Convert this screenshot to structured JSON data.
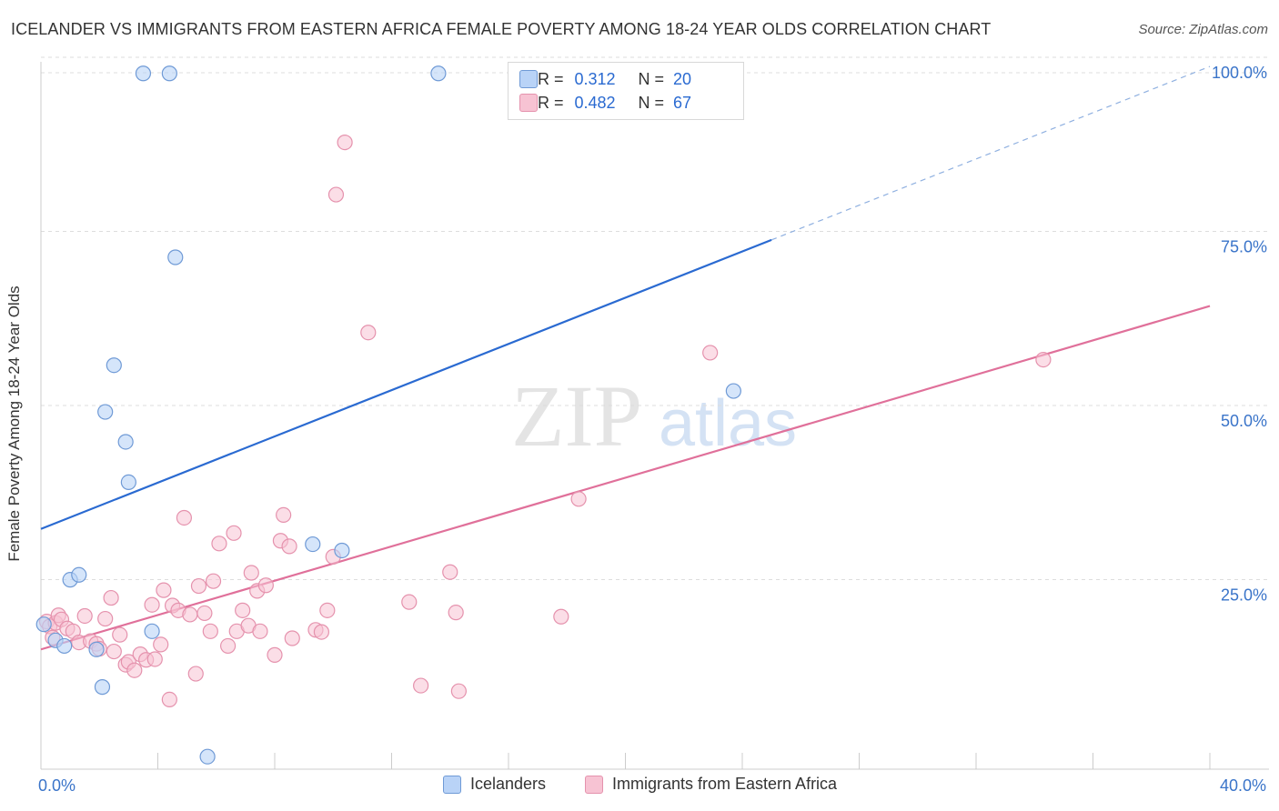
{
  "title": "ICELANDER VS IMMIGRANTS FROM EASTERN AFRICA FEMALE POVERTY AMONG 18-24 YEAR OLDS CORRELATION CHART",
  "source": "Source: ZipAtlas.com",
  "watermark_zip": "ZIP",
  "watermark_atlas": "atlas",
  "chart_data": {
    "type": "scatter",
    "xlabel": "",
    "ylabel": "Female Poverty Among 18-24 Year Olds",
    "xlim": [
      0,
      40
    ],
    "ylim": [
      0,
      100
    ],
    "x_tick_labels": [
      "0.0%",
      "40.0%"
    ],
    "y_tick_values": [
      25,
      50,
      75,
      100
    ],
    "y_tick_labels": [
      "25.0%",
      "50.0%",
      "75.0%",
      "100.0%"
    ],
    "grid": true,
    "legend_position": "top-center",
    "colors": {
      "blue": "#2a6ad1",
      "blue_fill": "#b9d3f7",
      "pink": "#e0709a",
      "pink_fill": "#f7c3d3",
      "tick_label": "#3a74c9"
    },
    "series": [
      {
        "name": "Icelanders",
        "R_label": "R =",
        "R": "0.312",
        "N_label": "N =",
        "N": "20",
        "trend": {
          "x0": 0,
          "y0": 34.5,
          "x1": 25,
          "y1": 76,
          "dashed_to_x": 40
        },
        "points": [
          [
            0.1,
            20.8
          ],
          [
            0.5,
            18.5
          ],
          [
            0.8,
            17.7
          ],
          [
            1.0,
            27.2
          ],
          [
            1.3,
            27.9
          ],
          [
            1.9,
            17.2
          ],
          [
            2.1,
            11.8
          ],
          [
            2.2,
            51.3
          ],
          [
            2.5,
            58.0
          ],
          [
            2.9,
            47.0
          ],
          [
            3.0,
            41.2
          ],
          [
            3.5,
            99.9
          ],
          [
            3.8,
            19.8
          ],
          [
            4.4,
            99.9
          ],
          [
            4.6,
            73.5
          ],
          [
            5.7,
            1.8
          ],
          [
            9.3,
            32.3
          ],
          [
            10.3,
            31.4
          ],
          [
            13.6,
            99.9
          ],
          [
            23.7,
            54.3
          ]
        ]
      },
      {
        "name": "Immigrants from Eastern Africa",
        "R_label": "R =",
        "R": "0.482",
        "N_label": "N =",
        "N": "67",
        "trend": {
          "x0": 0,
          "y0": 17.2,
          "x1": 40,
          "y1": 66.5
        },
        "points": [
          [
            0.2,
            21.2
          ],
          [
            0.3,
            20.5
          ],
          [
            0.4,
            18.9
          ],
          [
            0.5,
            21.0
          ],
          [
            0.6,
            22.1
          ],
          [
            0.7,
            21.5
          ],
          [
            0.9,
            20.2
          ],
          [
            1.1,
            19.8
          ],
          [
            1.3,
            18.2
          ],
          [
            1.5,
            22.0
          ],
          [
            1.7,
            18.4
          ],
          [
            1.9,
            18.0
          ],
          [
            2.0,
            17.3
          ],
          [
            2.2,
            21.6
          ],
          [
            2.4,
            24.6
          ],
          [
            2.5,
            16.9
          ],
          [
            2.7,
            19.3
          ],
          [
            2.9,
            15.0
          ],
          [
            3.0,
            15.4
          ],
          [
            3.2,
            14.2
          ],
          [
            3.4,
            16.5
          ],
          [
            3.6,
            15.7
          ],
          [
            3.8,
            23.6
          ],
          [
            3.9,
            15.8
          ],
          [
            4.1,
            17.9
          ],
          [
            4.2,
            25.7
          ],
          [
            4.4,
            10.0
          ],
          [
            4.5,
            23.5
          ],
          [
            4.7,
            22.8
          ],
          [
            4.9,
            36.1
          ],
          [
            5.1,
            22.2
          ],
          [
            5.3,
            13.7
          ],
          [
            5.4,
            26.3
          ],
          [
            5.6,
            22.4
          ],
          [
            5.8,
            19.8
          ],
          [
            5.9,
            27.0
          ],
          [
            6.1,
            32.4
          ],
          [
            6.4,
            17.7
          ],
          [
            6.6,
            33.9
          ],
          [
            6.7,
            19.8
          ],
          [
            6.9,
            22.8
          ],
          [
            7.1,
            20.6
          ],
          [
            7.2,
            28.2
          ],
          [
            7.4,
            25.6
          ],
          [
            7.5,
            19.8
          ],
          [
            7.7,
            26.4
          ],
          [
            8.0,
            16.4
          ],
          [
            8.2,
            32.8
          ],
          [
            8.3,
            36.5
          ],
          [
            8.5,
            32.0
          ],
          [
            8.6,
            18.8
          ],
          [
            9.4,
            20.0
          ],
          [
            9.6,
            19.7
          ],
          [
            9.8,
            22.8
          ],
          [
            10.0,
            30.5
          ],
          [
            10.1,
            82.5
          ],
          [
            10.4,
            90.0
          ],
          [
            11.2,
            62.7
          ],
          [
            12.6,
            24.0
          ],
          [
            13.0,
            12.0
          ],
          [
            14.0,
            28.3
          ],
          [
            14.2,
            22.5
          ],
          [
            14.3,
            11.2
          ],
          [
            17.8,
            21.9
          ],
          [
            18.4,
            38.8
          ],
          [
            22.9,
            59.8
          ],
          [
            34.3,
            58.8
          ]
        ]
      }
    ]
  }
}
